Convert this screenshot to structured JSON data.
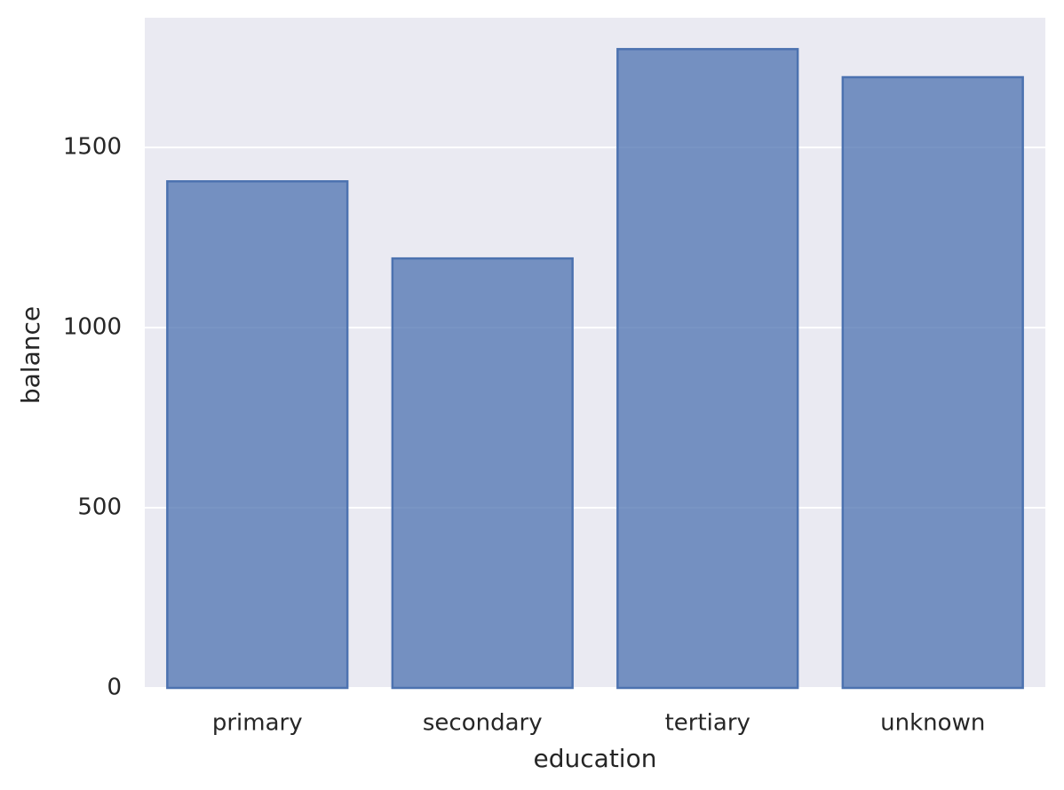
{
  "chart_data": {
    "type": "bar",
    "x_label": "education",
    "y_label": "balance",
    "categories": [
      "primary",
      "secondary",
      "tertiary",
      "unknown"
    ],
    "values": [
      1406,
      1192,
      1773,
      1695
    ],
    "color": "#4c72b0",
    "ylim": [
      0,
      1860
    ],
    "yticks": [
      0,
      500,
      1000,
      1500
    ],
    "grid": true
  }
}
